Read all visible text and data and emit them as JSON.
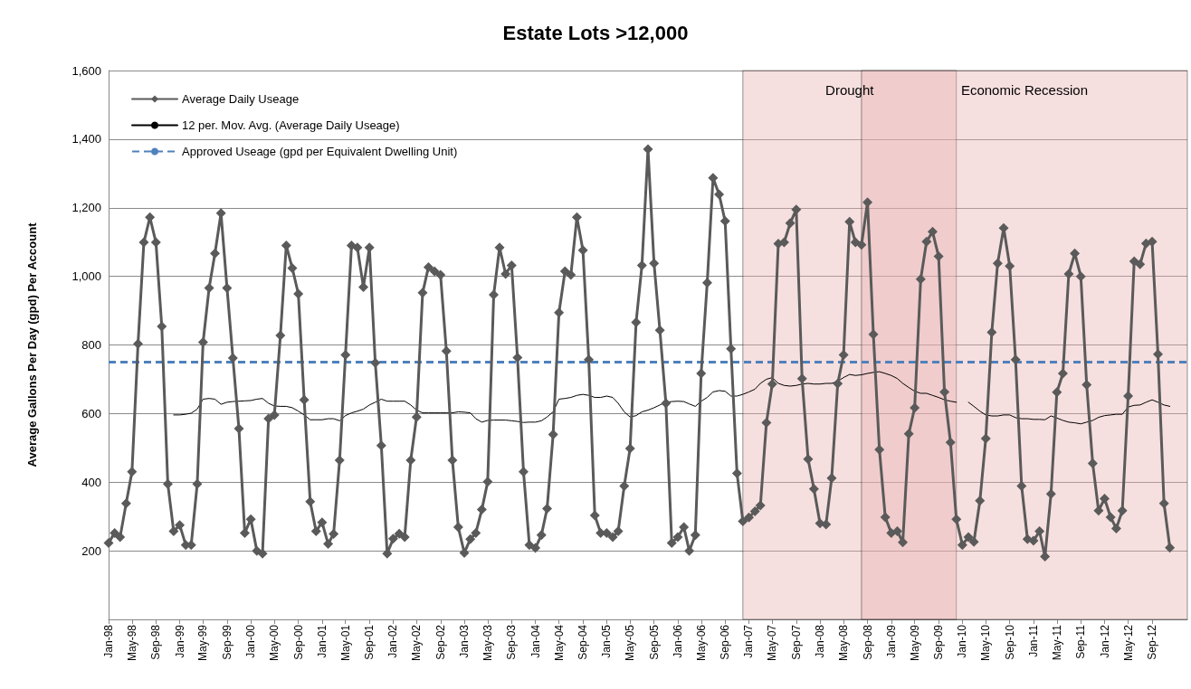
{
  "chart_data": {
    "type": "line",
    "title": "Estate Lots >12,000",
    "ylabel": "Average Gallons Per Day (gpd) Per Account",
    "x": [
      "1998-01",
      "1998-02",
      "1998-03",
      "1998-04",
      "1998-05",
      "1998-06",
      "1998-07",
      "1998-08",
      "1998-09",
      "1998-10",
      "1998-11",
      "1998-12",
      "1999-01",
      "1999-02",
      "1999-03",
      "1999-04",
      "1999-05",
      "1999-06",
      "1999-07",
      "1999-08",
      "1999-09",
      "1999-10",
      "1999-11",
      "1999-12",
      "2000-01",
      "2000-02",
      "2000-03",
      "2000-04",
      "2000-05",
      "2000-06",
      "2000-07",
      "2000-08",
      "2000-09",
      "2000-10",
      "2000-11",
      "2000-12",
      "2001-01",
      "2001-02",
      "2001-03",
      "2001-04",
      "2001-05",
      "2001-06",
      "2001-07",
      "2001-08",
      "2001-09",
      "2001-10",
      "2001-11",
      "2001-12",
      "2002-01",
      "2002-02",
      "2002-03",
      "2002-04",
      "2002-05",
      "2002-06",
      "2002-07",
      "2002-08",
      "2002-09",
      "2002-10",
      "2002-11",
      "2002-12",
      "2003-01",
      "2003-02",
      "2003-03",
      "2003-04",
      "2003-05",
      "2003-06",
      "2003-07",
      "2003-08",
      "2003-09",
      "2003-10",
      "2003-11",
      "2003-12",
      "2004-01",
      "2004-02",
      "2004-03",
      "2004-04",
      "2004-05",
      "2004-06",
      "2004-07",
      "2004-08",
      "2004-09",
      "2004-10",
      "2004-11",
      "2004-12",
      "2005-01",
      "2005-02",
      "2005-03",
      "2005-04",
      "2005-05",
      "2005-06",
      "2005-07",
      "2005-08",
      "2005-09",
      "2005-10",
      "2005-11",
      "2005-12",
      "2006-01",
      "2006-02",
      "2006-03",
      "2006-04",
      "2006-05",
      "2006-06",
      "2006-07",
      "2006-08",
      "2006-09",
      "2006-10",
      "2006-11",
      "2006-12",
      "2007-01",
      "2007-02",
      "2007-03",
      "2007-04",
      "2007-05",
      "2007-06",
      "2007-07",
      "2007-08",
      "2007-09",
      "2007-10",
      "2007-11",
      "2007-12",
      "2008-01",
      "2008-02",
      "2008-03",
      "2008-04",
      "2008-05",
      "2008-06",
      "2008-07",
      "2008-08",
      "2008-09",
      "2008-10",
      "2008-11",
      "2008-12",
      "2009-01",
      "2009-02",
      "2009-03",
      "2009-04",
      "2009-05",
      "2009-06",
      "2009-07",
      "2009-08",
      "2009-09",
      "2009-10",
      "2009-11",
      "2009-12",
      "2010-01",
      "2010-02",
      "2010-03",
      "2010-04",
      "2010-05",
      "2010-06",
      "2010-07",
      "2010-08",
      "2010-09",
      "2010-10",
      "2010-11",
      "2010-12",
      "2011-01",
      "2011-02",
      "2011-03",
      "2011-04",
      "2011-05",
      "2011-06",
      "2011-07",
      "2011-08",
      "2011-09",
      "2011-10",
      "2011-11",
      "2011-12",
      "2012-01",
      "2012-02",
      "2012-03",
      "2012-04",
      "2012-05",
      "2012-06",
      "2012-07",
      "2012-08",
      "2012-09",
      "2012-10",
      "2012-11",
      "2012-12"
    ],
    "xlim": [
      "1998-01",
      "2013-03"
    ],
    "xticks": [
      {
        "value": "1998-01",
        "label": "Jan-98"
      },
      {
        "value": "1998-05",
        "label": "May-98"
      },
      {
        "value": "1998-09",
        "label": "Sep-98"
      },
      {
        "value": "1999-01",
        "label": "Jan-99"
      },
      {
        "value": "1999-05",
        "label": "May-99"
      },
      {
        "value": "1999-09",
        "label": "Sep-99"
      },
      {
        "value": "2000-01",
        "label": "Jan-00"
      },
      {
        "value": "2000-05",
        "label": "May-00"
      },
      {
        "value": "2000-09",
        "label": "Sep-00"
      },
      {
        "value": "2001-01",
        "label": "Jan-01"
      },
      {
        "value": "2001-05",
        "label": "May-01"
      },
      {
        "value": "2001-09",
        "label": "Sep-01"
      },
      {
        "value": "2002-01",
        "label": "Jan-02"
      },
      {
        "value": "2002-05",
        "label": "May-02"
      },
      {
        "value": "2002-09",
        "label": "Sep-02"
      },
      {
        "value": "2003-01",
        "label": "Jan-03"
      },
      {
        "value": "2003-05",
        "label": "May-03"
      },
      {
        "value": "2003-09",
        "label": "Sep-03"
      },
      {
        "value": "2004-01",
        "label": "Jan-04"
      },
      {
        "value": "2004-05",
        "label": "May-04"
      },
      {
        "value": "2004-09",
        "label": "Sep-04"
      },
      {
        "value": "2005-01",
        "label": "Jan-05"
      },
      {
        "value": "2005-05",
        "label": "May-05"
      },
      {
        "value": "2005-09",
        "label": "Sep-05"
      },
      {
        "value": "2006-01",
        "label": "Jan-06"
      },
      {
        "value": "2006-05",
        "label": "May-06"
      },
      {
        "value": "2006-09",
        "label": "Sep-06"
      },
      {
        "value": "2007-01",
        "label": "Jan-07"
      },
      {
        "value": "2007-05",
        "label": "May-07"
      },
      {
        "value": "2007-09",
        "label": "Sep-07"
      },
      {
        "value": "2008-01",
        "label": "Jan-08"
      },
      {
        "value": "2008-05",
        "label": "May-08"
      },
      {
        "value": "2008-09",
        "label": "Sep-08"
      },
      {
        "value": "2009-01",
        "label": "Jan-09"
      },
      {
        "value": "2009-05",
        "label": "May-09"
      },
      {
        "value": "2009-09",
        "label": "Sep-09"
      },
      {
        "value": "2010-01",
        "label": "Jan-10"
      },
      {
        "value": "2010-05",
        "label": "May-10"
      },
      {
        "value": "2010-09",
        "label": "Sep-10"
      },
      {
        "value": "2011-01",
        "label": "Jan-11"
      },
      {
        "value": "2011-05",
        "label": "May-11"
      },
      {
        "value": "2011-09",
        "label": "Sep-11"
      },
      {
        "value": "2012-01",
        "label": "Jan-12"
      },
      {
        "value": "2012-05",
        "label": "May-12"
      },
      {
        "value": "2012-09",
        "label": "Sep-12"
      }
    ],
    "ylim": [
      0,
      1600
    ],
    "yticks": [
      200,
      400,
      600,
      800,
      {
        "value": 1000,
        "label": "1,000"
      },
      {
        "value": 1200,
        "label": "1,200"
      },
      {
        "value": 1400,
        "label": "1,400"
      },
      {
        "value": 1600,
        "label": "1,600"
      }
    ],
    "grid": "y",
    "legend": "top left",
    "marker": "diamond",
    "series": [
      {
        "name": "Average Daily Useage",
        "color": "#5a5a5a",
        "values": [
          223,
          252,
          240,
          338,
          430,
          803,
          1099,
          1172,
          1099,
          854,
          395,
          257,
          275,
          217,
          217,
          395,
          808,
          966,
          1067,
          1184,
          966,
          762,
          556,
          252,
          292,
          200,
          192,
          585,
          596,
          828,
          1090,
          1024,
          949,
          640,
          343,
          257,
          283,
          220,
          249,
          464,
          771,
          1090,
          1084,
          969,
          1084,
          748,
          507,
          192,
          235,
          250,
          240,
          464,
          590,
          952,
          1027,
          1015,
          1004,
          782,
          464,
          269,
          194,
          234,
          252,
          320,
          401,
          946,
          1084,
          1007,
          1032,
          763,
          430,
          217,
          208,
          246,
          323,
          539,
          894,
          1015,
          1004,
          1172,
          1076,
          757,
          303,
          252,
          252,
          240,
          257,
          389,
          498,
          866,
          1032,
          1371,
          1038,
          843,
          630,
          223,
          240,
          269,
          200,
          246,
          717,
          981,
          1287,
          1239,
          1161,
          789,
          426,
          286,
          297,
          315,
          332,
          573,
          686,
          1095,
          1099,
          1155,
          1195,
          702,
          467,
          380,
          280,
          277,
          412,
          687,
          771,
          1159,
          1099,
          1092,
          1216,
          831,
          495,
          298,
          252,
          257,
          225,
          541,
          617,
          992,
          1101,
          1130,
          1058,
          663,
          516,
          292,
          217,
          240,
          226,
          346,
          527,
          837,
          1038,
          1141,
          1030,
          757,
          389,
          234,
          229,
          257,
          183,
          366,
          662,
          717,
          1007,
          1067,
          1000,
          684,
          455,
          317,
          352,
          298,
          265,
          317,
          651,
          1044,
          1035,
          1096,
          1101,
          773,
          338,
          209
        ]
      },
      {
        "name": "12 per. Mov. Avg. (Average Daily Useage)",
        "color": "#000000",
        "marker": "none",
        "values": [
          null,
          null,
          null,
          null,
          null,
          null,
          null,
          null,
          null,
          null,
          null,
          596,
          596,
          598,
          601,
          613,
          642,
          644,
          642,
          627,
          633,
          635,
          636,
          637,
          638,
          642,
          644,
          630,
          622,
          621,
          621,
          617,
          607,
          596,
          582,
          582,
          582,
          585,
          585,
          579,
          594,
          602,
          607,
          613,
          625,
          633,
          642,
          636,
          636,
          636,
          636,
          625,
          610,
          602,
          602,
          602,
          602,
          602,
          602,
          605,
          604,
          602,
          585,
          575,
          580,
          581,
          581,
          581,
          579,
          577,
          574,
          575,
          575,
          579,
          590,
          605,
          642,
          644,
          647,
          653,
          656,
          653,
          647,
          647,
          651,
          647,
          630,
          605,
          590,
          594,
          605,
          610,
          617,
          625,
          633,
          635,
          636,
          635,
          628,
          621,
          636,
          647,
          663,
          667,
          665,
          651,
          651,
          656,
          663,
          671,
          688,
          700,
          705,
          688,
          682,
          680,
          682,
          686,
          688,
          686,
          686,
          688,
          688,
          694,
          705,
          714,
          711,
          713,
          717,
          720,
          722,
          717,
          711,
          702,
          688,
          676,
          665,
          659,
          659,
          653,
          647,
          640,
          636,
          633,
          null,
          633,
          621,
          607,
          596,
          593,
          593,
          596,
          596,
          588,
          585,
          585,
          583,
          583,
          582,
          593,
          587,
          580,
          575,
          573,
          570,
          575,
          580,
          589,
          594,
          596,
          598,
          598,
          619,
          624,
          625,
          633,
          640,
          633,
          625,
          621
        ]
      }
    ],
    "ref_lines": [
      {
        "axis": "y",
        "value": 750,
        "label": "Approved Useage (gpd per Equivalent Dwelling Unit)",
        "color": "#4f81bd",
        "line_style": "dashed"
      }
    ],
    "bands": [
      {
        "axis": "x",
        "from": "2006-12",
        "to": "2009-12",
        "label": "Drought",
        "color": "#e8aeb0"
      },
      {
        "axis": "x",
        "from": "2008-08",
        "to": "2013-03",
        "label": "Economic Recession",
        "color": "#e8aeb0"
      }
    ]
  }
}
